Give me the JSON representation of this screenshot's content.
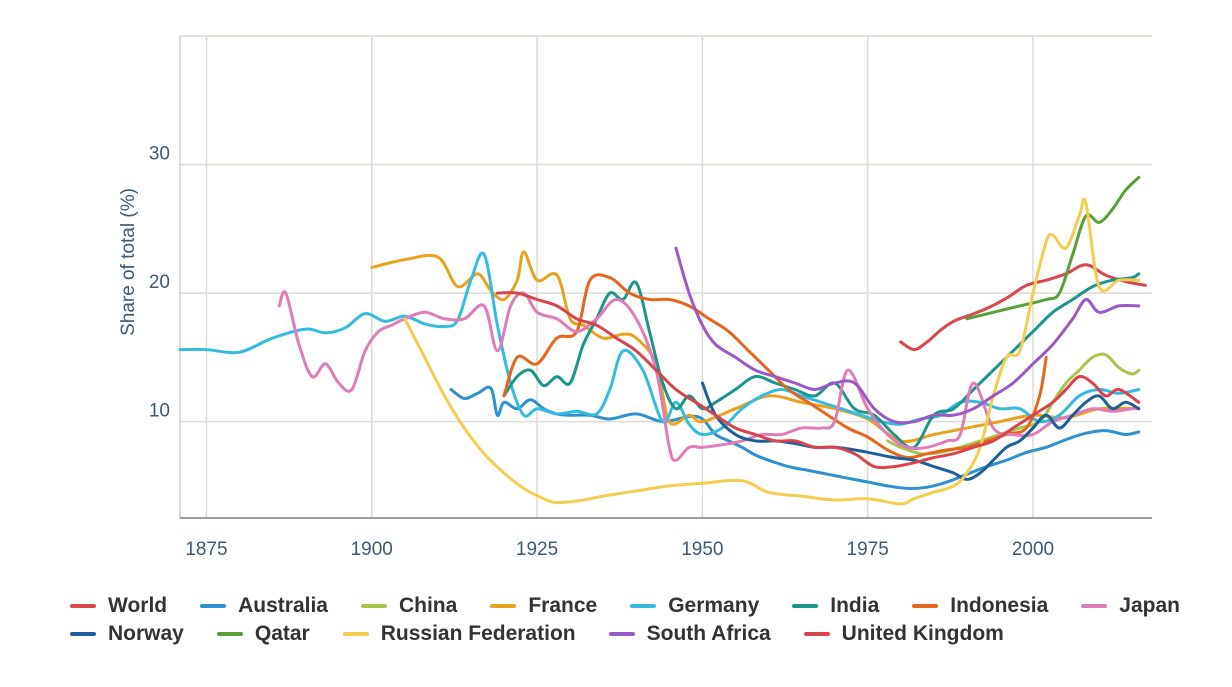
{
  "chart_data": {
    "type": "line",
    "xlabel": "",
    "ylabel": "Share of total (%)",
    "xlim": [
      1871,
      2018
    ],
    "ylim": [
      2.5,
      40
    ],
    "xticks": [
      1875,
      1900,
      1925,
      1950,
      1975,
      2000
    ],
    "yticks": [
      10,
      20,
      30
    ],
    "grid": true,
    "legend_position": "bottom",
    "series": [
      {
        "name": "World",
        "color": "#d9474f",
        "x": [
          1980,
          1982,
          1984,
          1986,
          1988,
          1990,
          1993,
          1996,
          1999,
          2002,
          2005,
          2008,
          2011,
          2014,
          2017
        ],
        "y": [
          16.2,
          15.6,
          16.2,
          17.1,
          17.8,
          18.2,
          18.8,
          19.6,
          20.6,
          21.0,
          21.5,
          22.2,
          21.4,
          20.9,
          20.6
        ]
      },
      {
        "name": "Australia",
        "color": "#2f8fcf",
        "x": [
          1912,
          1914,
          1916,
          1918,
          1919,
          1920,
          1922,
          1924,
          1926,
          1928,
          1930,
          1933,
          1936,
          1940,
          1944,
          1948,
          1950,
          1952,
          1954,
          1956,
          1958,
          1960,
          1963,
          1966,
          1969,
          1972,
          1975,
          1978,
          1981,
          1984,
          1987,
          1990,
          1993,
          1996,
          1999,
          2002,
          2005,
          2008,
          2011,
          2014,
          2016
        ],
        "y": [
          12.5,
          11.8,
          12.2,
          12.6,
          10.5,
          11.5,
          11.0,
          11.7,
          11.0,
          10.6,
          10.5,
          10.5,
          10.2,
          10.6,
          10.0,
          10.4,
          10.2,
          9.0,
          8.5,
          8.0,
          7.4,
          7.0,
          6.5,
          6.2,
          5.9,
          5.6,
          5.3,
          5.0,
          4.8,
          4.9,
          5.3,
          5.9,
          6.5,
          7.0,
          7.6,
          8.0,
          8.6,
          9.1,
          9.3,
          9.0,
          9.2
        ]
      },
      {
        "name": "China",
        "color": "#a8c44c",
        "x": [
          1978,
          1980,
          1983,
          1986,
          1989,
          1992,
          1995,
          1998,
          2001,
          2003,
          2005,
          2007,
          2009,
          2011,
          2013,
          2015,
          2016
        ],
        "y": [
          8.5,
          8.0,
          7.5,
          7.6,
          8.0,
          8.5,
          9.0,
          9.5,
          10.0,
          11.5,
          13.0,
          14.0,
          15.0,
          15.2,
          14.2,
          13.7,
          14.0
        ]
      },
      {
        "name": "France",
        "color": "#e8a21c",
        "x": [
          1900,
          1905,
          1910,
          1913,
          1916,
          1918,
          1920,
          1922,
          1923,
          1925,
          1928,
          1930,
          1932,
          1935,
          1938,
          1940,
          1943,
          1945,
          1948,
          1950,
          1955,
          1960,
          1965,
          1970,
          1975,
          1980,
          1985,
          1990,
          1995,
          2000,
          2005,
          2010,
          2016
        ],
        "y": [
          22.0,
          22.6,
          22.8,
          20.5,
          21.5,
          20.2,
          19.5,
          21.0,
          23.2,
          21.0,
          21.4,
          18.0,
          17.5,
          16.5,
          16.8,
          16.5,
          14.5,
          10.0,
          10.5,
          10.0,
          11.0,
          12.0,
          11.5,
          11.0,
          10.2,
          8.5,
          9.0,
          9.5,
          10.0,
          10.5,
          10.3,
          11.0,
          11.0
        ]
      },
      {
        "name": "Germany",
        "color": "#33bcdf",
        "x": [
          1871,
          1875,
          1880,
          1885,
          1890,
          1893,
          1896,
          1899,
          1902,
          1905,
          1908,
          1911,
          1913,
          1915,
          1917,
          1919,
          1921,
          1923,
          1925,
          1928,
          1931,
          1934,
          1936,
          1938,
          1941,
          1944,
          1946,
          1948,
          1950,
          1953,
          1956,
          1959,
          1962,
          1965,
          1968,
          1971,
          1974,
          1977,
          1980,
          1983,
          1986,
          1989,
          1992,
          1995,
          1998,
          2001,
          2004,
          2007,
          2010,
          2013,
          2016
        ],
        "y": [
          15.6,
          15.6,
          15.4,
          16.5,
          17.2,
          16.9,
          17.3,
          18.4,
          17.8,
          18.2,
          17.6,
          17.4,
          17.9,
          21.0,
          23.0,
          17.5,
          13.0,
          10.5,
          11.0,
          10.6,
          10.8,
          10.6,
          12.5,
          15.5,
          14.0,
          10.0,
          11.5,
          9.8,
          9.0,
          9.5,
          11.0,
          12.0,
          12.5,
          12.0,
          11.5,
          11.0,
          10.5,
          10.0,
          9.8,
          10.2,
          10.5,
          11.5,
          11.5,
          11.0,
          11.0,
          10.0,
          10.5,
          12.0,
          12.5,
          12.2,
          12.5
        ]
      },
      {
        "name": "India",
        "color": "#1c958c",
        "x": [
          1920,
          1922,
          1924,
          1926,
          1928,
          1930,
          1932,
          1934,
          1936,
          1938,
          1940,
          1942,
          1944,
          1946,
          1948,
          1950,
          1952,
          1955,
          1958,
          1961,
          1964,
          1967,
          1970,
          1973,
          1976,
          1979,
          1982,
          1985,
          1988,
          1991,
          1994,
          1997,
          2000,
          2003,
          2006,
          2009,
          2012,
          2015,
          2016
        ],
        "y": [
          12.0,
          13.5,
          14.0,
          12.8,
          13.5,
          13.0,
          16.0,
          18.0,
          20.0,
          19.5,
          20.8,
          17.0,
          13.0,
          11.0,
          12.0,
          11.0,
          11.5,
          12.5,
          13.5,
          13.0,
          12.5,
          12.0,
          13.0,
          11.0,
          10.5,
          9.0,
          8.0,
          10.5,
          11.0,
          12.5,
          14.0,
          15.5,
          17.0,
          18.5,
          19.5,
          20.5,
          21.0,
          21.2,
          21.5
        ]
      },
      {
        "name": "Indonesia",
        "color": "#e8661c",
        "x": [
          1920,
          1922,
          1925,
          1928,
          1931,
          1933,
          1936,
          1939,
          1942,
          1945,
          1948,
          1951,
          1954,
          1957,
          1960,
          1963,
          1966,
          1969,
          1972,
          1975,
          1978,
          1981,
          1984,
          1987,
          1990,
          1993,
          1996,
          1999,
          2001,
          2002
        ],
        "y": [
          12.0,
          15.0,
          14.5,
          16.5,
          17.0,
          21.0,
          21.2,
          20.0,
          19.5,
          19.5,
          19.0,
          18.0,
          17.0,
          15.5,
          14.0,
          12.5,
          11.5,
          10.5,
          9.5,
          8.8,
          7.8,
          7.2,
          7.5,
          7.8,
          8.0,
          8.5,
          9.0,
          9.5,
          12.0,
          15.0
        ]
      },
      {
        "name": "Japan",
        "color": "#e07cb8",
        "x": [
          1886,
          1887,
          1889,
          1891,
          1893,
          1895,
          1897,
          1899,
          1901,
          1903,
          1905,
          1908,
          1911,
          1914,
          1917,
          1919,
          1921,
          1923,
          1925,
          1928,
          1931,
          1934,
          1937,
          1940,
          1943,
          1945,
          1946,
          1948,
          1950,
          1953,
          1956,
          1959,
          1962,
          1965,
          1968,
          1970,
          1972,
          1975,
          1978,
          1981,
          1984,
          1987,
          1989,
          1991,
          1994,
          1997,
          2000,
          2003,
          2006,
          2009,
          2012,
          2015,
          2016
        ],
        "y": [
          19.0,
          20.0,
          16.0,
          13.5,
          14.5,
          13.0,
          12.5,
          15.5,
          17.0,
          17.5,
          18.0,
          18.5,
          18.0,
          18.0,
          19.0,
          15.5,
          19.0,
          20.0,
          18.5,
          18.0,
          17.0,
          18.0,
          19.5,
          18.0,
          14.0,
          8.0,
          7.0,
          8.0,
          8.0,
          8.2,
          8.5,
          9.0,
          9.0,
          9.5,
          9.5,
          10.0,
          14.0,
          11.0,
          9.0,
          8.0,
          8.0,
          8.5,
          9.0,
          13.0,
          9.5,
          9.0,
          9.0,
          10.0,
          10.5,
          11.0,
          10.8,
          11.0,
          11.0
        ]
      },
      {
        "name": "Norway",
        "color": "#1f5f99",
        "x": [
          1950,
          1952,
          1955,
          1958,
          1961,
          1964,
          1967,
          1970,
          1973,
          1976,
          1979,
          1982,
          1985,
          1988,
          1990,
          1992,
          1994,
          1996,
          1998,
          2000,
          2002,
          2004,
          2006,
          2008,
          2010,
          2012,
          2014,
          2016
        ],
        "y": [
          13.0,
          10.5,
          9.0,
          8.5,
          8.5,
          8.3,
          8.0,
          8.0,
          7.8,
          7.5,
          7.2,
          7.0,
          6.5,
          6.0,
          5.5,
          6.0,
          7.0,
          8.0,
          8.5,
          9.5,
          10.5,
          9.5,
          10.5,
          11.5,
          12.0,
          11.0,
          11.5,
          11.0
        ]
      },
      {
        "name": "Qatar",
        "color": "#5a9e3a",
        "x": [
          1990,
          1994,
          1998,
          2002,
          2004,
          2006,
          2008,
          2010,
          2012,
          2014,
          2016
        ],
        "y": [
          18.0,
          18.5,
          19.0,
          19.5,
          20.0,
          23.0,
          26.0,
          25.5,
          26.5,
          28.0,
          29.0
        ]
      },
      {
        "name": "Russian Federation",
        "color": "#f2cd50",
        "x": [
          1905,
          1908,
          1911,
          1914,
          1917,
          1920,
          1923,
          1926,
          1928,
          1932,
          1935,
          1940,
          1945,
          1950,
          1956,
          1960,
          1965,
          1970,
          1975,
          1980,
          1982,
          1985,
          1988,
          1990,
          1992,
          1994,
          1996,
          1998,
          2000,
          2002,
          2003,
          2005,
          2007,
          2008,
          2010,
          2013,
          2016
        ],
        "y": [
          18.0,
          15.0,
          12.0,
          9.5,
          7.5,
          6.0,
          4.8,
          4.0,
          3.7,
          3.9,
          4.2,
          4.6,
          5.0,
          5.2,
          5.4,
          4.5,
          4.2,
          3.9,
          4.0,
          3.6,
          4.0,
          4.5,
          5.0,
          6.0,
          8.0,
          12.0,
          15.0,
          15.5,
          20.0,
          24.0,
          24.5,
          23.5,
          26.0,
          27.0,
          20.5,
          21.0,
          21.0
        ]
      },
      {
        "name": "South Africa",
        "color": "#9b59c6",
        "x": [
          1946,
          1948,
          1950,
          1952,
          1955,
          1958,
          1961,
          1964,
          1967,
          1970,
          1973,
          1976,
          1979,
          1982,
          1985,
          1988,
          1991,
          1994,
          1997,
          2000,
          2003,
          2006,
          2008,
          2010,
          2013,
          2016
        ],
        "y": [
          23.5,
          20.0,
          17.5,
          16.0,
          15.0,
          14.0,
          13.5,
          13.0,
          12.5,
          13.0,
          13.0,
          11.0,
          10.0,
          10.0,
          10.5,
          10.5,
          11.0,
          12.0,
          13.0,
          14.5,
          16.0,
          18.0,
          19.5,
          18.5,
          19.0,
          19.0
        ]
      },
      {
        "name": "United Kingdom",
        "color": "#d8444e",
        "x": [
          1919,
          1922,
          1925,
          1928,
          1931,
          1934,
          1937,
          1940,
          1943,
          1946,
          1949,
          1952,
          1955,
          1958,
          1961,
          1964,
          1967,
          1970,
          1973,
          1976,
          1979,
          1982,
          1985,
          1988,
          1991,
          1994,
          1997,
          2000,
          2003,
          2005,
          2007,
          2009,
          2011,
          2013,
          2016
        ],
        "y": [
          20.0,
          20.0,
          19.5,
          19.0,
          18.0,
          17.5,
          16.5,
          15.5,
          14.0,
          12.5,
          11.5,
          10.5,
          9.5,
          9.0,
          8.5,
          8.5,
          8.0,
          8.0,
          7.5,
          6.5,
          6.5,
          6.8,
          7.2,
          7.5,
          8.0,
          8.5,
          9.5,
          10.5,
          11.5,
          12.5,
          13.5,
          13.0,
          12.0,
          12.5,
          11.5
        ]
      }
    ]
  }
}
